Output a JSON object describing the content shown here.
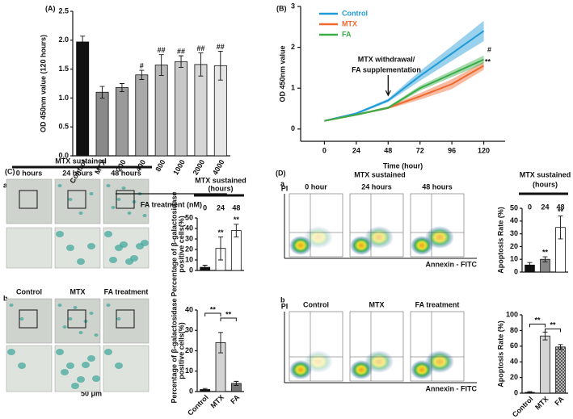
{
  "chart_data": [
    {
      "type": "bar",
      "title": "(A)",
      "categories": [
        "Control",
        "MTX",
        "200",
        "400",
        "800",
        "1000",
        "2000",
        "4000"
      ],
      "values": [
        1.97,
        1.1,
        1.18,
        1.4,
        1.57,
        1.63,
        1.58,
        1.56
      ],
      "errors": [
        0.1,
        0.1,
        0.07,
        0.08,
        0.18,
        0.1,
        0.2,
        0.25
      ],
      "colors": [
        "#111111",
        "#8a8a8a",
        "#9a9a9a",
        "#a9a9a9",
        "#b8b8b8",
        "#c8c8c8",
        "#d6d6d6",
        "#e6e6e6"
      ],
      "significance": [
        null,
        null,
        null,
        "#",
        "##",
        "##",
        "##",
        "##"
      ],
      "ylabel": "OD 450nm value (120 hours)",
      "xlabel": "FA treatment (nM)",
      "ylim": [
        0,
        2.5
      ],
      "yticks": [
        {
          "value": 0,
          "label": "0.0"
        },
        0.5,
        {
          "value": 1,
          "label": "1.0"
        },
        1.5,
        {
          "value": 2,
          "label": "2.0"
        },
        2.5
      ]
    },
    {
      "type": "line",
      "title": "(B)",
      "x": [
        0,
        24,
        48,
        72,
        96,
        120
      ],
      "series": [
        {
          "name": "Control",
          "color": "#1e9ad6",
          "values": [
            0.2,
            0.38,
            0.7,
            1.3,
            1.85,
            2.4
          ],
          "errors": [
            0.02,
            0.03,
            0.04,
            0.12,
            0.18,
            0.25
          ]
        },
        {
          "name": "MTX",
          "color": "#f0692f",
          "values": [
            0.2,
            0.35,
            0.52,
            0.8,
            1.1,
            1.55
          ],
          "errors": [
            0.02,
            0.02,
            0.03,
            0.08,
            0.12,
            0.1
          ]
        },
        {
          "name": "FA",
          "color": "#3aad48",
          "values": [
            0.2,
            0.35,
            0.52,
            1.0,
            1.35,
            1.7
          ],
          "errors": [
            0.02,
            0.02,
            0.03,
            0.06,
            0.08,
            0.1
          ]
        }
      ],
      "annotations": [
        "MTX withdrawal/",
        "FA supplementation",
        "#",
        "**"
      ],
      "ylabel": "OD 450nm value",
      "xlabel": "Time (hour)",
      "xlim": [
        -10,
        130
      ],
      "xticks": [
        0,
        24,
        48,
        72,
        96,
        120
      ],
      "ylim": [
        -0.3,
        3
      ],
      "yticks": [
        0,
        1,
        2,
        3
      ]
    },
    {
      "type": "bar",
      "title": [
        "MTX sustained",
        "(hours)"
      ],
      "categories": [
        "0",
        "24",
        "48"
      ],
      "values": [
        3,
        21,
        38
      ],
      "errors": [
        2,
        11,
        6
      ],
      "colors": [
        "#111111",
        "#ffffff",
        "#ffffff"
      ],
      "significance": [
        null,
        "**",
        "**"
      ],
      "ylabel": [
        "Percentage of β-galactosidase",
        "positive cells(%)"
      ],
      "ylim": [
        0,
        50
      ],
      "yticks": [
        0,
        10,
        20,
        30,
        40,
        50
      ]
    },
    {
      "type": "bar",
      "categories": [
        "Control",
        "MTX",
        "FA"
      ],
      "values": [
        1,
        24,
        4
      ],
      "errors": [
        0.5,
        5,
        1
      ],
      "colors": [
        "#111111",
        "#d4d4d4",
        "#777777"
      ],
      "comparisons": [
        {
          "from": "Control",
          "to": "MTX",
          "label": "**"
        },
        {
          "from": "MTX",
          "to": "FA",
          "label": "**"
        }
      ],
      "ylabel": [
        "Percentage of β-galactosidase",
        "positive cells(%)"
      ],
      "ylim": [
        0,
        40
      ],
      "yticks": [
        0,
        10,
        20,
        30,
        40
      ]
    },
    {
      "type": "bar",
      "title": [
        "MTX sustained",
        "(hours)"
      ],
      "categories": [
        "0",
        "24",
        "48"
      ],
      "values": [
        5.5,
        10,
        35
      ],
      "errors": [
        2,
        2,
        9
      ],
      "colors": [
        "#111111",
        "#888888",
        "#ffffff"
      ],
      "significance": [
        null,
        "**",
        "**"
      ],
      "ylabel": "Apoptosis Rate (%)",
      "ylim": [
        0,
        50
      ],
      "yticks": [
        0,
        10,
        20,
        30,
        40,
        50
      ]
    },
    {
      "type": "bar",
      "categories": [
        "Control",
        "MTX",
        "FA"
      ],
      "values": [
        1,
        73,
        59
      ],
      "errors": [
        1,
        5,
        3
      ],
      "colors": [
        "#111111",
        "#d4d4d4",
        "#999999"
      ],
      "comparisons": [
        {
          "from": "Control",
          "to": "MTX",
          "label": "**"
        },
        {
          "from": "MTX",
          "to": "FA",
          "label": "**"
        }
      ],
      "ylabel": "Apoptosis Rate (%)",
      "ylim": [
        0,
        100
      ],
      "yticks": [
        0,
        20,
        40,
        60,
        80,
        100
      ]
    }
  ],
  "figure_text": {
    "c_label": "(C)",
    "c_header": "MTX sustained",
    "c_a": "a",
    "c_b": "b",
    "c_time": [
      "0 hours",
      "24 hours",
      "48 hours"
    ],
    "c_groups": [
      "Control",
      "MTX",
      "FA treatment"
    ],
    "scale_bar": "50 μm",
    "d_label": "(D)",
    "d_a": "a",
    "d_b": "b",
    "d_header": "MTX sustained",
    "d_time": [
      "0 hour",
      "24 hours",
      "48 hours"
    ],
    "d_groups": [
      "Control",
      "MTX",
      "FA treatment"
    ],
    "d_ylabel": "PI",
    "d_xlabel": "Annexin - FITC"
  }
}
